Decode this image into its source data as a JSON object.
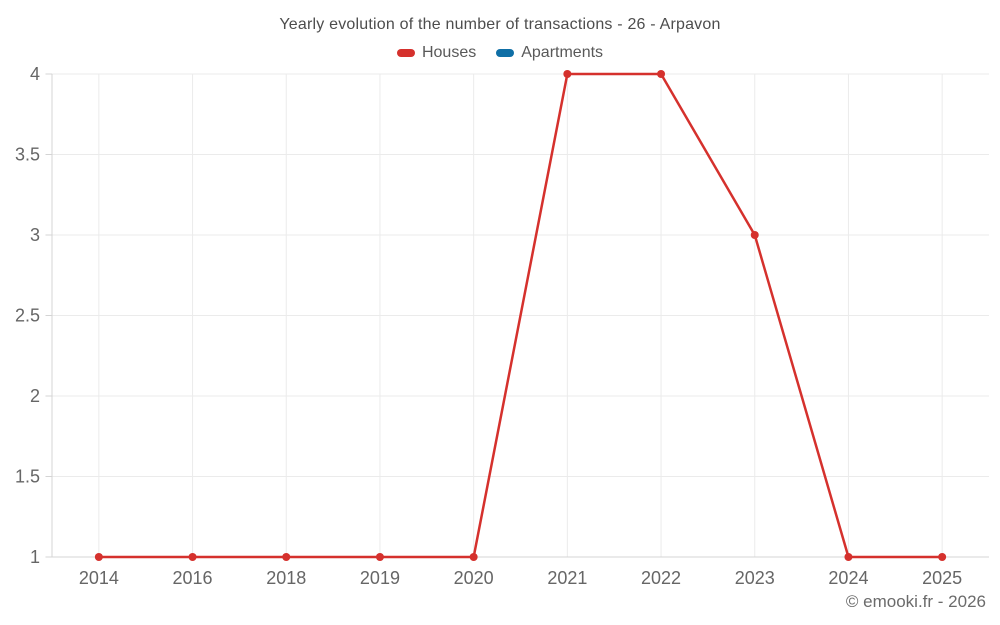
{
  "header": {
    "title": "Yearly evolution of the number of transactions - 26 - Arpavon"
  },
  "legend": [
    {
      "label": "Houses",
      "color": "#d5312d"
    },
    {
      "label": "Apartments",
      "color": "#0f6fa6"
    }
  ],
  "watermark": "© emooki.fr - 2026",
  "colors": {
    "grid": "#ebebeb",
    "axis": "#d4d4d4",
    "tick_label": "#666666",
    "title": "#4d4d4d",
    "legend_text": "#595959",
    "watermark": "#6b6b6b",
    "houses": "#d5312d",
    "apartments": "#0f6fa6",
    "background": "#ffffff"
  },
  "chart_data": {
    "type": "line",
    "title": "Yearly evolution of the number of transactions - 26 - Arpavon",
    "categories": [
      "2014",
      "2016",
      "2018",
      "2019",
      "2020",
      "2021",
      "2022",
      "2023",
      "2024",
      "2025"
    ],
    "series": [
      {
        "name": "Houses",
        "color": "#d5312d",
        "values": [
          1,
          1,
          1,
          1,
          1,
          4,
          4,
          3,
          1,
          1
        ]
      },
      {
        "name": "Apartments",
        "color": "#0f6fa6",
        "values": []
      }
    ],
    "xlabel": "",
    "ylabel": "",
    "ylim": [
      1,
      4
    ],
    "yticks": [
      1,
      1.5,
      2,
      2.5,
      3,
      3.5,
      4
    ],
    "grid": true,
    "legend_position": "top",
    "point_radius": 4,
    "line_width": 2.5
  }
}
